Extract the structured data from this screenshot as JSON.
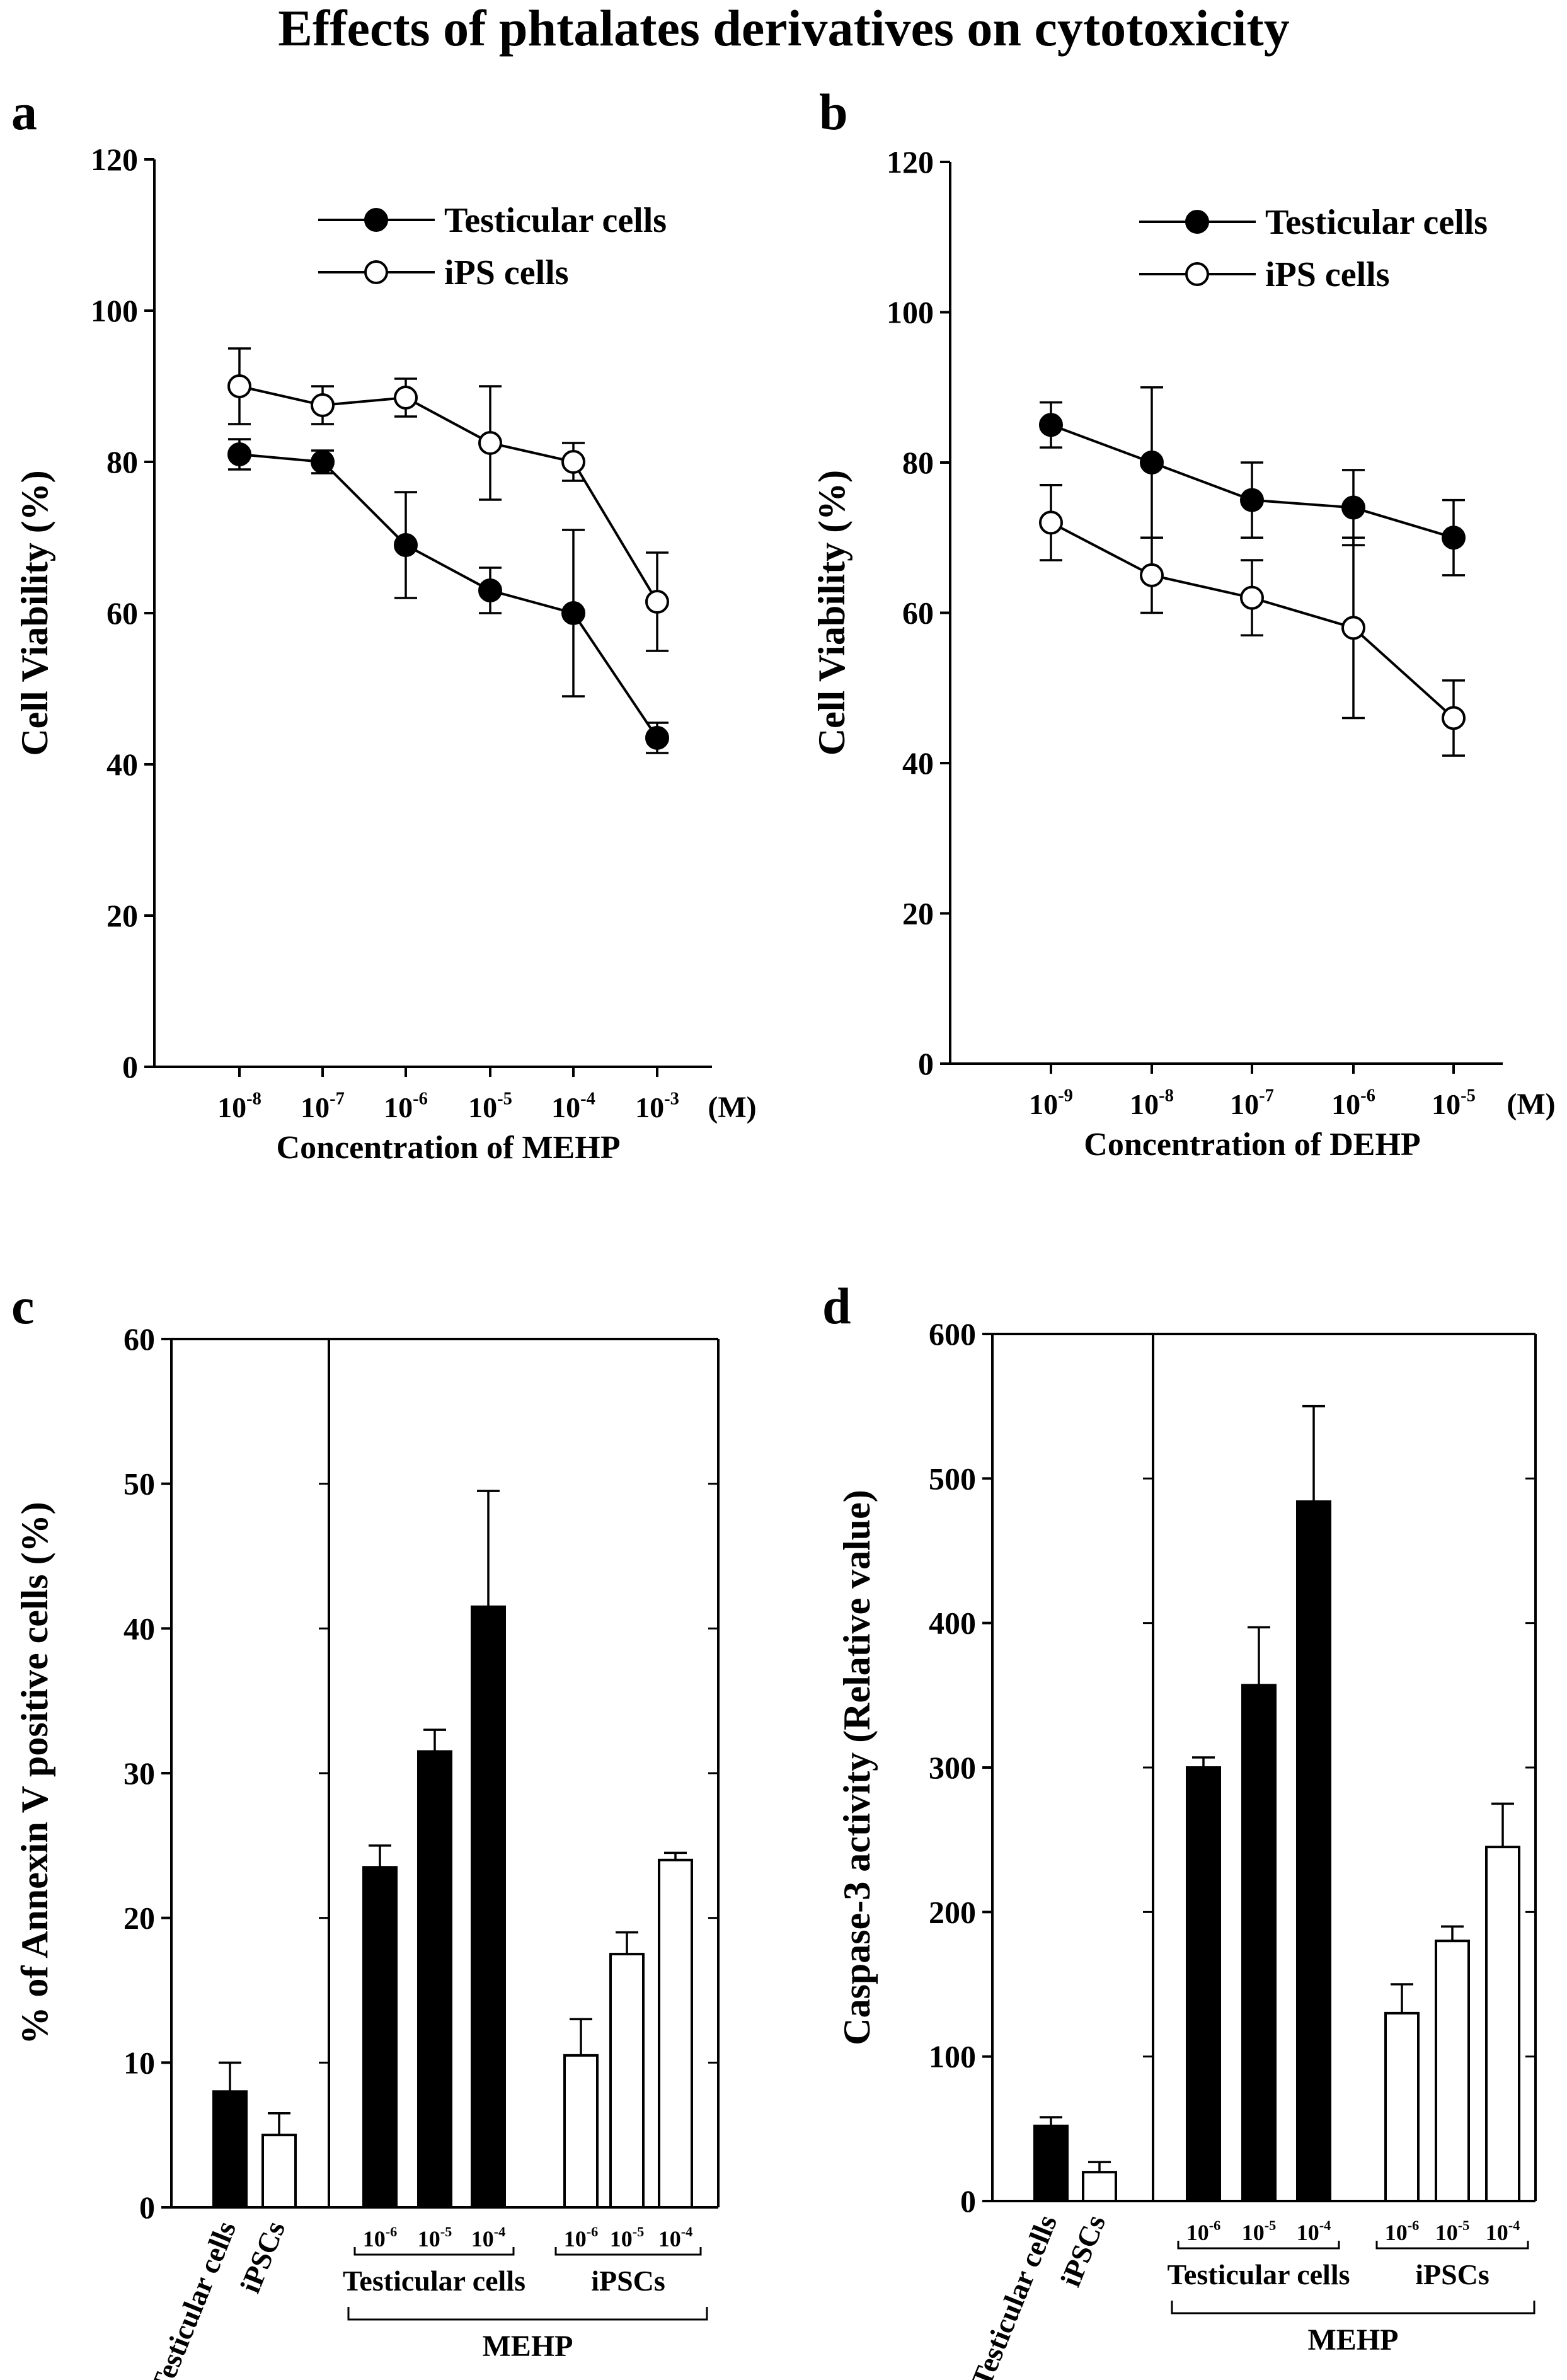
{
  "figure_title": "Effects of phtalates derivatives on cytotoxicity",
  "chart_data": [
    {
      "panel": "a",
      "type": "line",
      "x_ticks": [
        {
          "base": "10",
          "exp": "-8"
        },
        {
          "base": "10",
          "exp": "-7"
        },
        {
          "base": "10",
          "exp": "-6"
        },
        {
          "base": "10",
          "exp": "-5"
        },
        {
          "base": "10",
          "exp": "-4"
        },
        {
          "base": "10",
          "exp": "-3"
        }
      ],
      "x_unit": "(M)",
      "xlabel": "Concentration of MEHP",
      "ylabel": "Cell Viability (%)",
      "ylim": [
        0,
        120
      ],
      "yticks": [
        0,
        20,
        40,
        60,
        80,
        100,
        120
      ],
      "legend_position": "top-right",
      "series": [
        {
          "name": "Testicular cells",
          "marker": "filled-circle",
          "values": [
            81,
            80,
            69,
            63,
            60,
            43.5
          ],
          "errors": [
            2,
            1.5,
            7,
            3,
            11,
            2
          ]
        },
        {
          "name": "iPS cells",
          "marker": "open-circle",
          "values": [
            90,
            87.5,
            88.5,
            82.5,
            80,
            61.5
          ],
          "errors": [
            5,
            2.5,
            2.5,
            7.5,
            2.5,
            6.5
          ]
        }
      ]
    },
    {
      "panel": "b",
      "type": "line",
      "x_ticks": [
        {
          "base": "10",
          "exp": "-9"
        },
        {
          "base": "10",
          "exp": "-8"
        },
        {
          "base": "10",
          "exp": "-7"
        },
        {
          "base": "10",
          "exp": "-6"
        },
        {
          "base": "10",
          "exp": "-5"
        }
      ],
      "x_unit": "(M)",
      "xlabel": "Concentration of DEHP",
      "ylabel": "Cell Viability (%)",
      "ylim": [
        0,
        120
      ],
      "yticks": [
        0,
        20,
        40,
        60,
        80,
        100,
        120
      ],
      "legend_position": "top-right",
      "series": [
        {
          "name": "Testicular cells",
          "marker": "filled-circle",
          "values": [
            85,
            80,
            75,
            74,
            70
          ],
          "errors": [
            3,
            10,
            5,
            5,
            5
          ]
        },
        {
          "name": "iPS cells",
          "marker": "open-circle",
          "values": [
            72,
            65,
            62,
            58,
            46
          ],
          "errors": [
            5,
            5,
            5,
            12,
            5
          ]
        }
      ]
    },
    {
      "panel": "c",
      "type": "bar",
      "ylabel": "% of Annexin V positive cells (%)",
      "ylim": [
        0,
        60
      ],
      "yticks": [
        0,
        10,
        20,
        30,
        40,
        50,
        60
      ],
      "control_labels": [
        "Testicular cells",
        "iPSCs"
      ],
      "controls": [
        {
          "value": 8,
          "error": 2,
          "fill": "#000000"
        },
        {
          "value": 5,
          "error": 1.5,
          "fill": "#ffffff"
        }
      ],
      "dose_ticks": [
        {
          "base": "10",
          "exp": "-6"
        },
        {
          "base": "10",
          "exp": "-5"
        },
        {
          "base": "10",
          "exp": "-4"
        }
      ],
      "group_labels": [
        "Testicular cells",
        "iPSCs"
      ],
      "treatment_label": "MEHP",
      "groups": [
        {
          "fill": "#000000",
          "values": [
            23.5,
            31.5,
            41.5
          ],
          "errors": [
            1.5,
            1.5,
            8
          ]
        },
        {
          "fill": "#ffffff",
          "values": [
            10.5,
            17.5,
            24
          ],
          "errors": [
            2.5,
            1.5,
            0.5
          ]
        }
      ]
    },
    {
      "panel": "d",
      "type": "bar",
      "ylabel": "Caspase-3 activity (Relative value)",
      "ylim": [
        0,
        600
      ],
      "yticks": [
        0,
        100,
        200,
        300,
        400,
        500,
        600
      ],
      "control_labels": [
        "Testicular cells",
        "iPSCs"
      ],
      "controls": [
        {
          "value": 52,
          "error": 6,
          "fill": "#000000"
        },
        {
          "value": 20,
          "error": 7,
          "fill": "#ffffff"
        }
      ],
      "dose_ticks": [
        {
          "base": "10",
          "exp": "-6"
        },
        {
          "base": "10",
          "exp": "-5"
        },
        {
          "base": "10",
          "exp": "-4"
        }
      ],
      "group_labels": [
        "Testicular cells",
        "iPSCs"
      ],
      "treatment_label": "MEHP",
      "groups": [
        {
          "fill": "#000000",
          "values": [
            300,
            357,
            484
          ],
          "errors": [
            7,
            40,
            66
          ]
        },
        {
          "fill": "#ffffff",
          "values": [
            130,
            180,
            245
          ],
          "errors": [
            20,
            10,
            30
          ]
        }
      ]
    }
  ]
}
